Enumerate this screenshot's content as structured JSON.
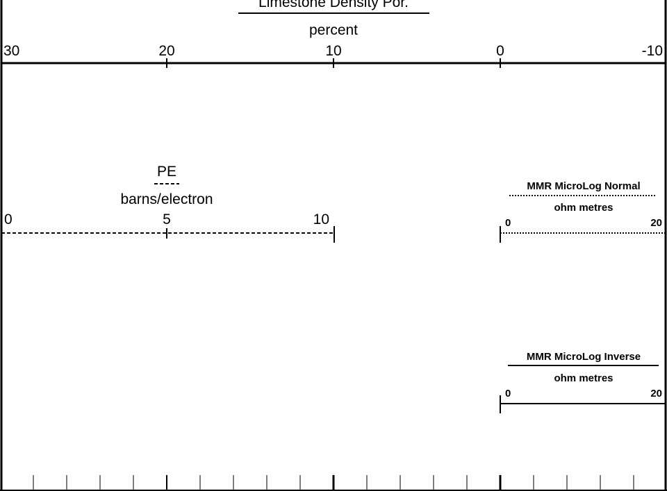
{
  "density_track": {
    "title": "Limestone Density Por.",
    "unit": "percent",
    "ticks": [
      "30",
      "20",
      "10",
      "0",
      "-10"
    ]
  },
  "pe_track": {
    "title": "PE",
    "unit": "barns/electron",
    "ticks": [
      "0",
      "5",
      "10"
    ]
  },
  "normal_track": {
    "title": "MMR MicroLog Normal",
    "unit": "ohm metres",
    "ticks": [
      "0",
      "20"
    ]
  },
  "inverse_track": {
    "title": "MMR MicroLog Inverse",
    "unit": "ohm metres",
    "ticks": [
      "0",
      "20"
    ]
  },
  "line_colors": {
    "curves": "#000000"
  }
}
